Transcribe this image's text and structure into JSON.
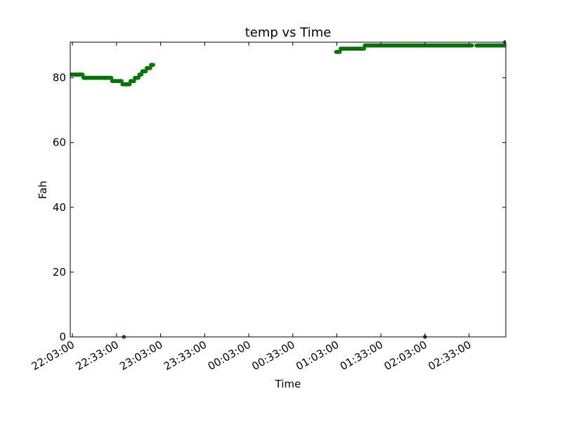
{
  "chart_data": {
    "type": "scatter",
    "title": "temp vs Time",
    "xlabel": "Time",
    "ylabel": "Fah",
    "x_range": [
      "22:01:30",
      "02:58:00"
    ],
    "ylim": [
      0,
      91
    ],
    "x_ticks": [
      "22:03:00",
      "22:33:00",
      "23:03:00",
      "23:33:00",
      "00:03:00",
      "00:33:00",
      "01:03:00",
      "01:33:00",
      "02:03:00",
      "02:33:00"
    ],
    "y_ticks": [
      0,
      20,
      40,
      60,
      80
    ],
    "grid": false,
    "series_color": "#007f00",
    "segments": [
      {
        "start": "22:01:30",
        "end": "22:10:00",
        "step_sec": 30,
        "value": 81
      },
      {
        "start": "22:10:30",
        "end": "22:29:30",
        "step_sec": 30,
        "value": 80
      },
      {
        "start": "22:30:00",
        "end": "22:36:30",
        "step_sec": 30,
        "value": 79
      },
      {
        "start": "22:37:00",
        "end": "22:42:00",
        "step_sec": 30,
        "value": 78
      },
      {
        "start": "22:42:30",
        "end": "22:45:00",
        "step_sec": 30,
        "value": 79
      },
      {
        "start": "22:45:30",
        "end": "22:48:00",
        "step_sec": 30,
        "value": 80
      },
      {
        "start": "22:48:30",
        "end": "22:50:00",
        "step_sec": 30,
        "value": 81
      },
      {
        "start": "22:50:30",
        "end": "22:53:00",
        "step_sec": 30,
        "value": 82
      },
      {
        "start": "22:53:30",
        "end": "22:56:00",
        "step_sec": 30,
        "value": 83
      },
      {
        "start": "22:56:30",
        "end": "22:58:00",
        "step_sec": 30,
        "value": 84
      },
      {
        "start": "01:02:30",
        "end": "01:05:00",
        "step_sec": 30,
        "value": 88
      },
      {
        "start": "01:05:30",
        "end": "01:21:30",
        "step_sec": 30,
        "value": 89
      },
      {
        "start": "01:22:00",
        "end": "02:35:00",
        "step_sec": 30,
        "value": 90
      },
      {
        "start": "02:38:00",
        "end": "02:58:00",
        "step_sec": 30,
        "value": 90
      }
    ],
    "points": [
      {
        "x": "22:38:00",
        "y": 0
      },
      {
        "x": "02:03:00",
        "y": 0
      },
      {
        "x": "02:57:30",
        "y": 91
      }
    ]
  }
}
